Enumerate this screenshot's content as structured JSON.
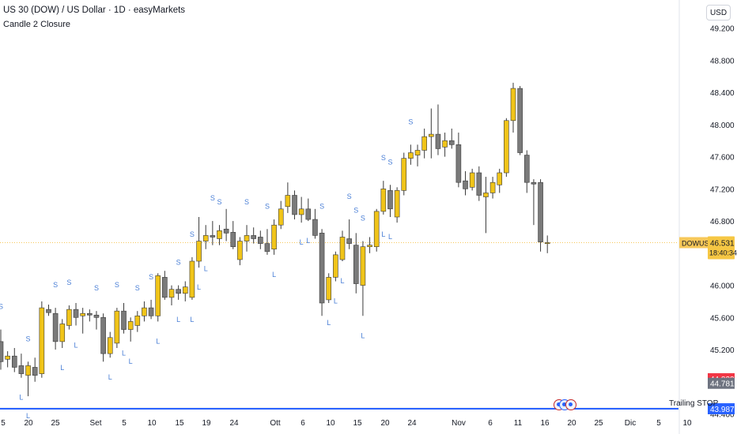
{
  "header": {
    "title": "US 30 (DOW) / US Dollar · 1D · easyMarkets",
    "indicator": "Candle 2 Closure"
  },
  "currency_button": "USD",
  "trailing_stop_label": "Trailing STOP",
  "colors": {
    "bull": "#f0c419",
    "bear": "#7a7a7a",
    "signal": "#4a7fd6",
    "price_line": "#f7c85a",
    "trailing_line": "#2962ff",
    "badge_red": "#f23645",
    "badge_dark": "#6e7380"
  },
  "chart_data": {
    "type": "candlestick",
    "symbol": "DOWUSD",
    "y_ticks": [
      "49.200",
      "48.800",
      "48.400",
      "48.000",
      "47.600",
      "47.200",
      "46.800",
      "46.400",
      "46.000",
      "45.600",
      "45.200",
      "44.800",
      "44.400"
    ],
    "x_ticks": [
      "5",
      "20",
      "25",
      "Set",
      "5",
      "10",
      "15",
      "19",
      "24",
      "Ott",
      "6",
      "10",
      "15",
      "20",
      "24",
      "Nov",
      "6",
      "11",
      "16",
      "20",
      "25",
      "Dic",
      "5",
      "10"
    ],
    "ylim": [
      44.15,
      49.55
    ],
    "last_price": {
      "value": "46.531",
      "countdown": "18:40:34"
    },
    "badges": [
      {
        "label": "44.838",
        "color": "red"
      },
      {
        "label": "44.781",
        "color": "dark"
      },
      {
        "label": "43.987",
        "color": "blue"
      }
    ],
    "trailing_stop": 43.987,
    "candles": [
      {
        "o": 45.3,
        "h": 45.45,
        "l": 44.95,
        "c": 45.05
      },
      {
        "o": 45.08,
        "h": 45.18,
        "l": 44.98,
        "c": 45.12
      },
      {
        "o": 45.12,
        "h": 45.22,
        "l": 44.92,
        "c": 44.98
      },
      {
        "o": 45.0,
        "h": 45.15,
        "l": 44.85,
        "c": 44.9
      },
      {
        "o": 44.88,
        "h": 45.05,
        "l": 44.62,
        "c": 45.0
      },
      {
        "o": 44.98,
        "h": 45.1,
        "l": 44.8,
        "c": 44.88
      },
      {
        "o": 44.9,
        "h": 45.8,
        "l": 44.85,
        "c": 45.72
      },
      {
        "o": 45.7,
        "h": 45.76,
        "l": 45.62,
        "c": 45.66
      },
      {
        "o": 45.65,
        "h": 45.72,
        "l": 45.2,
        "c": 45.3
      },
      {
        "o": 45.3,
        "h": 45.58,
        "l": 45.22,
        "c": 45.52
      },
      {
        "o": 45.5,
        "h": 45.75,
        "l": 45.45,
        "c": 45.7
      },
      {
        "o": 45.7,
        "h": 45.78,
        "l": 45.5,
        "c": 45.6
      },
      {
        "o": 45.62,
        "h": 45.72,
        "l": 45.4,
        "c": 45.65
      },
      {
        "o": 45.65,
        "h": 45.7,
        "l": 45.55,
        "c": 45.63
      },
      {
        "o": 45.63,
        "h": 45.68,
        "l": 45.45,
        "c": 45.6
      },
      {
        "o": 45.6,
        "h": 45.65,
        "l": 45.05,
        "c": 45.15
      },
      {
        "o": 45.15,
        "h": 45.42,
        "l": 45.1,
        "c": 45.35
      },
      {
        "o": 45.28,
        "h": 45.72,
        "l": 45.22,
        "c": 45.68
      },
      {
        "o": 45.68,
        "h": 45.78,
        "l": 45.4,
        "c": 45.45
      },
      {
        "o": 45.45,
        "h": 45.6,
        "l": 45.3,
        "c": 45.55
      },
      {
        "o": 45.5,
        "h": 45.68,
        "l": 45.42,
        "c": 45.62
      },
      {
        "o": 45.62,
        "h": 45.8,
        "l": 45.55,
        "c": 45.72
      },
      {
        "o": 45.72,
        "h": 45.82,
        "l": 45.58,
        "c": 45.62
      },
      {
        "o": 45.62,
        "h": 46.15,
        "l": 45.55,
        "c": 46.12
      },
      {
        "o": 46.1,
        "h": 46.18,
        "l": 45.82,
        "c": 45.85
      },
      {
        "o": 45.85,
        "h": 46.0,
        "l": 45.75,
        "c": 45.95
      },
      {
        "o": 45.95,
        "h": 46.0,
        "l": 45.82,
        "c": 45.9
      },
      {
        "o": 45.9,
        "h": 46.05,
        "l": 45.8,
        "c": 45.98
      },
      {
        "o": 45.85,
        "h": 46.35,
        "l": 45.82,
        "c": 46.3
      },
      {
        "o": 46.3,
        "h": 46.85,
        "l": 46.22,
        "c": 46.55
      },
      {
        "o": 46.55,
        "h": 46.75,
        "l": 46.45,
        "c": 46.62
      },
      {
        "o": 46.62,
        "h": 46.8,
        "l": 46.5,
        "c": 46.6
      },
      {
        "o": 46.58,
        "h": 46.75,
        "l": 46.5,
        "c": 46.68
      },
      {
        "o": 46.7,
        "h": 46.95,
        "l": 46.55,
        "c": 46.65
      },
      {
        "o": 46.66,
        "h": 46.8,
        "l": 46.45,
        "c": 46.48
      },
      {
        "o": 46.32,
        "h": 46.6,
        "l": 46.25,
        "c": 46.55
      },
      {
        "o": 46.55,
        "h": 46.75,
        "l": 46.42,
        "c": 46.62
      },
      {
        "o": 46.62,
        "h": 46.72,
        "l": 46.52,
        "c": 46.58
      },
      {
        "o": 46.6,
        "h": 46.68,
        "l": 46.45,
        "c": 46.52
      },
      {
        "o": 46.52,
        "h": 46.7,
        "l": 46.38,
        "c": 46.42
      },
      {
        "o": 46.45,
        "h": 46.82,
        "l": 46.38,
        "c": 46.75
      },
      {
        "o": 46.75,
        "h": 47.05,
        "l": 46.7,
        "c": 46.95
      },
      {
        "o": 46.98,
        "h": 47.28,
        "l": 46.9,
        "c": 47.12
      },
      {
        "o": 47.12,
        "h": 47.18,
        "l": 46.82,
        "c": 46.88
      },
      {
        "o": 46.88,
        "h": 47.1,
        "l": 46.78,
        "c": 46.95
      },
      {
        "o": 46.95,
        "h": 47.08,
        "l": 46.8,
        "c": 46.82
      },
      {
        "o": 46.82,
        "h": 46.95,
        "l": 46.58,
        "c": 46.62
      },
      {
        "o": 46.65,
        "h": 46.7,
        "l": 45.62,
        "c": 45.78
      },
      {
        "o": 45.82,
        "h": 46.15,
        "l": 45.78,
        "c": 46.1
      },
      {
        "o": 46.1,
        "h": 46.42,
        "l": 46.05,
        "c": 46.38
      },
      {
        "o": 46.32,
        "h": 46.68,
        "l": 46.3,
        "c": 46.6
      },
      {
        "o": 46.58,
        "h": 46.82,
        "l": 46.45,
        "c": 46.52
      },
      {
        "o": 46.5,
        "h": 46.65,
        "l": 45.9,
        "c": 46.02
      },
      {
        "o": 46.0,
        "h": 46.55,
        "l": 45.62,
        "c": 46.48
      },
      {
        "o": 46.48,
        "h": 46.6,
        "l": 46.4,
        "c": 46.5
      },
      {
        "o": 46.48,
        "h": 46.95,
        "l": 46.42,
        "c": 46.92
      },
      {
        "o": 46.92,
        "h": 47.3,
        "l": 46.88,
        "c": 47.2
      },
      {
        "o": 47.18,
        "h": 47.25,
        "l": 46.85,
        "c": 46.95
      },
      {
        "o": 46.85,
        "h": 47.22,
        "l": 46.78,
        "c": 47.18
      },
      {
        "o": 47.18,
        "h": 47.65,
        "l": 47.12,
        "c": 47.58
      },
      {
        "o": 47.58,
        "h": 47.75,
        "l": 47.5,
        "c": 47.65
      },
      {
        "o": 47.62,
        "h": 47.75,
        "l": 47.48,
        "c": 47.68
      },
      {
        "o": 47.68,
        "h": 47.95,
        "l": 47.58,
        "c": 47.85
      },
      {
        "o": 47.85,
        "h": 48.2,
        "l": 47.58,
        "c": 47.88
      },
      {
        "o": 47.88,
        "h": 48.25,
        "l": 47.62,
        "c": 47.7
      },
      {
        "o": 47.72,
        "h": 47.9,
        "l": 47.6,
        "c": 47.8
      },
      {
        "o": 47.8,
        "h": 47.95,
        "l": 47.7,
        "c": 47.75
      },
      {
        "o": 47.75,
        "h": 47.9,
        "l": 47.22,
        "c": 47.28
      },
      {
        "o": 47.3,
        "h": 47.42,
        "l": 47.12,
        "c": 47.2
      },
      {
        "o": 47.22,
        "h": 47.45,
        "l": 47.18,
        "c": 47.4
      },
      {
        "o": 47.4,
        "h": 47.48,
        "l": 47.05,
        "c": 47.12
      },
      {
        "o": 47.1,
        "h": 47.35,
        "l": 46.65,
        "c": 47.15
      },
      {
        "o": 47.15,
        "h": 47.35,
        "l": 47.08,
        "c": 47.28
      },
      {
        "o": 47.25,
        "h": 47.45,
        "l": 47.15,
        "c": 47.4
      },
      {
        "o": 47.4,
        "h": 48.08,
        "l": 47.35,
        "c": 48.05
      },
      {
        "o": 48.05,
        "h": 48.52,
        "l": 47.9,
        "c": 48.45
      },
      {
        "o": 48.45,
        "h": 48.48,
        "l": 47.62,
        "c": 47.65
      },
      {
        "o": 47.62,
        "h": 47.68,
        "l": 47.15,
        "c": 47.28
      },
      {
        "o": 47.28,
        "h": 47.32,
        "l": 46.75,
        "c": 47.26
      },
      {
        "o": 47.28,
        "h": 47.32,
        "l": 46.42,
        "c": 46.54
      },
      {
        "o": 46.53,
        "h": 46.62,
        "l": 46.4,
        "c": 46.531
      }
    ],
    "signals_S": [
      0,
      4,
      8,
      10,
      14,
      17,
      20,
      22,
      26,
      28,
      31,
      32,
      36,
      39,
      47,
      51,
      52,
      53,
      56,
      57,
      60
    ],
    "signals_L": [
      3,
      4,
      9,
      11,
      16,
      18,
      19,
      23,
      26,
      28,
      29,
      30,
      40,
      44,
      45,
      48,
      49,
      50,
      53,
      56,
      57
    ]
  }
}
